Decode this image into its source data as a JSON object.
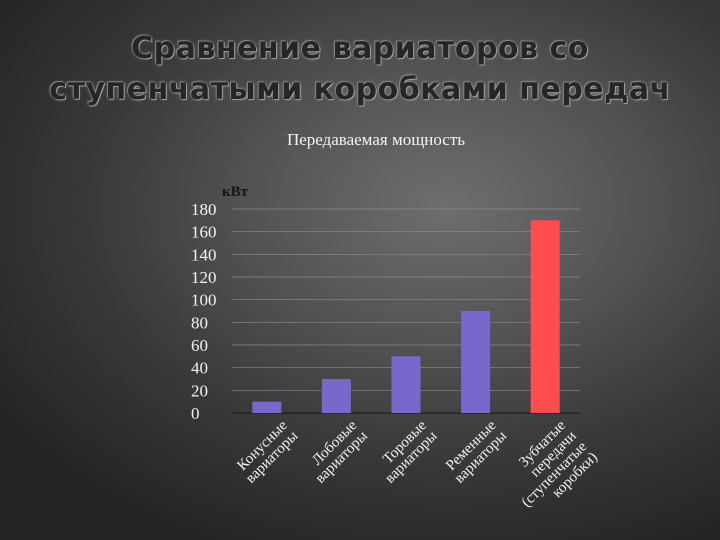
{
  "slide": {
    "title_line1": "Сравнение вариаторов со",
    "title_line2": "ступенчатыми коробками передач"
  },
  "chart_data": {
    "type": "bar",
    "title": "Передаваемая мощность",
    "ylabel": "кВт",
    "xlabel": "",
    "ylim": [
      0,
      180
    ],
    "yticks": [
      0,
      20,
      40,
      60,
      80,
      100,
      120,
      140,
      160,
      180
    ],
    "grid": true,
    "categories": [
      [
        "Конусные",
        "вариаторы"
      ],
      [
        "Лобовые",
        "вариаторы"
      ],
      [
        "Торовые",
        "вариаторы"
      ],
      [
        "Ременные",
        "вариаторы"
      ],
      [
        "Зубчатые",
        "передачи",
        "(ступенчатые",
        "коробки)"
      ]
    ],
    "values": [
      10,
      30,
      50,
      90,
      170
    ],
    "colors": [
      "#7a67cc",
      "#7a67cc",
      "#7a67cc",
      "#7a67cc",
      "#ff4c4c"
    ]
  }
}
